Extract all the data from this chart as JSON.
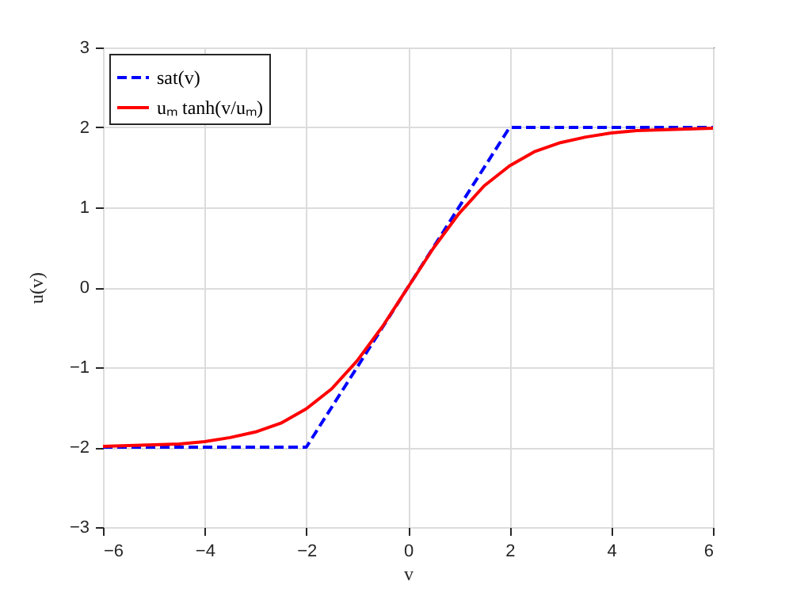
{
  "chart_data": {
    "type": "line",
    "xlabel": "v",
    "ylabel": "u(v)",
    "xlim": [
      -6,
      6
    ],
    "ylim": [
      -3,
      3
    ],
    "xticks": [
      -6,
      -4,
      -2,
      0,
      2,
      4,
      6
    ],
    "yticks": [
      -3,
      -2,
      -1,
      0,
      1,
      2,
      3
    ],
    "grid": true,
    "legend": "top left",
    "series": [
      {
        "name": "sat(v)",
        "color": "#0000ff",
        "line_style": "dashed",
        "x": [
          -6,
          -2,
          2,
          6
        ],
        "values": [
          -2,
          -2,
          2,
          2
        ]
      },
      {
        "name": "uₘ tanh(v/uₘ)",
        "color": "#ff0000",
        "line_style": "solid",
        "x": [
          -6,
          -5.5,
          -5,
          -4.5,
          -4,
          -3.5,
          -3,
          -2.5,
          -2,
          -1.5,
          -1,
          -0.5,
          0,
          0.5,
          1,
          1.5,
          2,
          2.5,
          3,
          3.5,
          4,
          4.5,
          5,
          5.5,
          6
        ],
        "values": [
          -1.99,
          -1.98,
          -1.97,
          -1.96,
          -1.93,
          -1.88,
          -1.81,
          -1.7,
          -1.52,
          -1.27,
          -0.92,
          -0.49,
          0,
          0.49,
          0.92,
          1.27,
          1.52,
          1.7,
          1.81,
          1.88,
          1.93,
          1.96,
          1.97,
          1.98,
          1.99
        ]
      }
    ]
  }
}
